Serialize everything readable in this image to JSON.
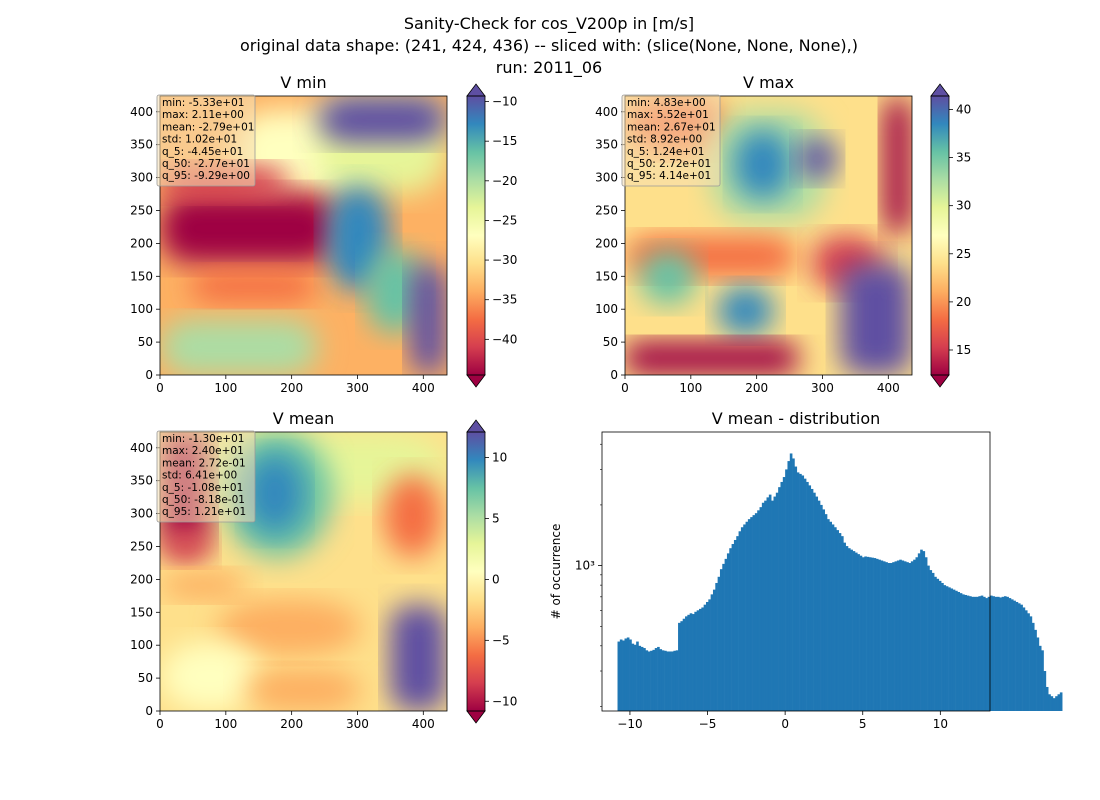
{
  "figure": {
    "title_lines": [
      "Sanity-Check for cos_V200p in [m/s]",
      "original data shape: (241, 424, 436) -- sliced with: (slice(None, None, None),)",
      "run: 2011_06"
    ]
  },
  "colormap": {
    "name": "Spectral",
    "stops": [
      "#9e0142",
      "#d53e4f",
      "#f46d43",
      "#fdae61",
      "#fee08b",
      "#ffffbf",
      "#e6f598",
      "#abdda4",
      "#66c2a5",
      "#3288bd",
      "#5e4fa2"
    ]
  },
  "chart_data": [
    {
      "type": "heatmap",
      "title": "V min",
      "xlim": [
        0,
        436
      ],
      "ylim": [
        0,
        424
      ],
      "xticks": [
        0,
        100,
        200,
        300,
        400
      ],
      "yticks": [
        0,
        50,
        100,
        150,
        200,
        250,
        300,
        350,
        400
      ],
      "colorbar": {
        "vmin": -44.5,
        "vmax": -9.3,
        "ticks": [
          -40,
          -35,
          -30,
          -25,
          -20,
          -15,
          -10
        ],
        "extend": "both"
      },
      "stats": [
        "min: -5.33e+01",
        "max: 2.11e+00",
        "mean: -2.79e+01",
        "std: 1.02e+01",
        "q_5: -4.45e+01",
        "q_50: -2.77e+01",
        "q_95: -9.29e+00"
      ]
    },
    {
      "type": "heatmap",
      "title": "V max",
      "xlim": [
        0,
        436
      ],
      "ylim": [
        0,
        424
      ],
      "xticks": [
        0,
        100,
        200,
        300,
        400
      ],
      "yticks": [
        0,
        50,
        100,
        150,
        200,
        250,
        300,
        350,
        400
      ],
      "colorbar": {
        "vmin": 12.4,
        "vmax": 41.4,
        "ticks": [
          15,
          20,
          25,
          30,
          35,
          40
        ],
        "extend": "both"
      },
      "stats": [
        "min: 4.83e+00",
        "max: 5.52e+01",
        "mean: 2.67e+01",
        "std: 8.92e+00",
        "q_5: 1.24e+01",
        "q_50: 2.72e+01",
        "q_95: 4.14e+01"
      ]
    },
    {
      "type": "heatmap",
      "title": "V mean",
      "xlim": [
        0,
        436
      ],
      "ylim": [
        0,
        424
      ],
      "xticks": [
        0,
        100,
        200,
        300,
        400
      ],
      "yticks": [
        0,
        50,
        100,
        150,
        200,
        250,
        300,
        350,
        400
      ],
      "colorbar": {
        "vmin": -10.8,
        "vmax": 12.1,
        "ticks": [
          -10,
          -5,
          0,
          5,
          10
        ],
        "extend": "both"
      },
      "stats": [
        "min: -1.30e+01",
        "max: 2.40e+01",
        "mean: 2.72e-01",
        "std: 6.41e+00",
        "q_5: -1.08e+01",
        "q_50: -8.18e-01",
        "q_95: 1.21e+01"
      ]
    },
    {
      "type": "bar",
      "title": "V mean - distribution",
      "ylabel": "# of occurrence",
      "yscale": "log",
      "xlim": [
        -11.8,
        13.2
      ],
      "ylim": [
        190,
        4600
      ],
      "xticks": [
        -10,
        -5,
        0,
        5,
        10
      ],
      "yticks_major": [
        1000
      ],
      "ytick_labels": [
        "10³"
      ],
      "yticks_minor": [
        200,
        300,
        400,
        500,
        600,
        700,
        800,
        900,
        2000,
        3000,
        4000
      ],
      "color": "#1f77b4",
      "histogram": {
        "x_start": -10.8,
        "bin_width": 0.15,
        "counts": [
          420,
          430,
          425,
          435,
          440,
          430,
          410,
          405,
          420,
          400,
          395,
          390,
          380,
          375,
          378,
          382,
          390,
          395,
          385,
          380,
          378,
          375,
          375,
          375,
          378,
          380,
          520,
          530,
          545,
          560,
          570,
          580,
          575,
          590,
          600,
          610,
          620,
          640,
          660,
          680,
          720,
          760,
          820,
          880,
          960,
          1020,
          1080,
          1150,
          1220,
          1280,
          1340,
          1400,
          1480,
          1550,
          1600,
          1650,
          1700,
          1740,
          1780,
          1820,
          1880,
          1950,
          2050,
          2100,
          2180,
          2250,
          2100,
          2200,
          2300,
          2450,
          2600,
          2750,
          3000,
          3300,
          3600,
          3400,
          3100,
          2900,
          2850,
          2800,
          2700,
          2600,
          2500,
          2400,
          2300,
          2200,
          2100,
          2000,
          1900,
          1800,
          1700,
          1650,
          1600,
          1550,
          1500,
          1450,
          1400,
          1300,
          1250,
          1220,
          1200,
          1180,
          1160,
          1140,
          1120,
          1100,
          1110,
          1105,
          1100,
          1095,
          1090,
          1080,
          1070,
          1060,
          1050,
          1040,
          1030,
          1030,
          1040,
          1050,
          1060,
          1070,
          1060,
          1050,
          1040,
          1030,
          1050,
          1070,
          1100,
          1150,
          1200,
          1180,
          1100,
          1000,
          950,
          920,
          880,
          860,
          840,
          820,
          800,
          790,
          780,
          770,
          760,
          750,
          740,
          730,
          720,
          715,
          710,
          705,
          700,
          700,
          700,
          705,
          710,
          700,
          690,
          700,
          710,
          705,
          700,
          700,
          695,
          700,
          705,
          700,
          690,
          680,
          670,
          660,
          650,
          640,
          620,
          600,
          580,
          560,
          520,
          480,
          440,
          400,
          380,
          300,
          250,
          230,
          225,
          220,
          225,
          230,
          235
        ]
      }
    }
  ]
}
